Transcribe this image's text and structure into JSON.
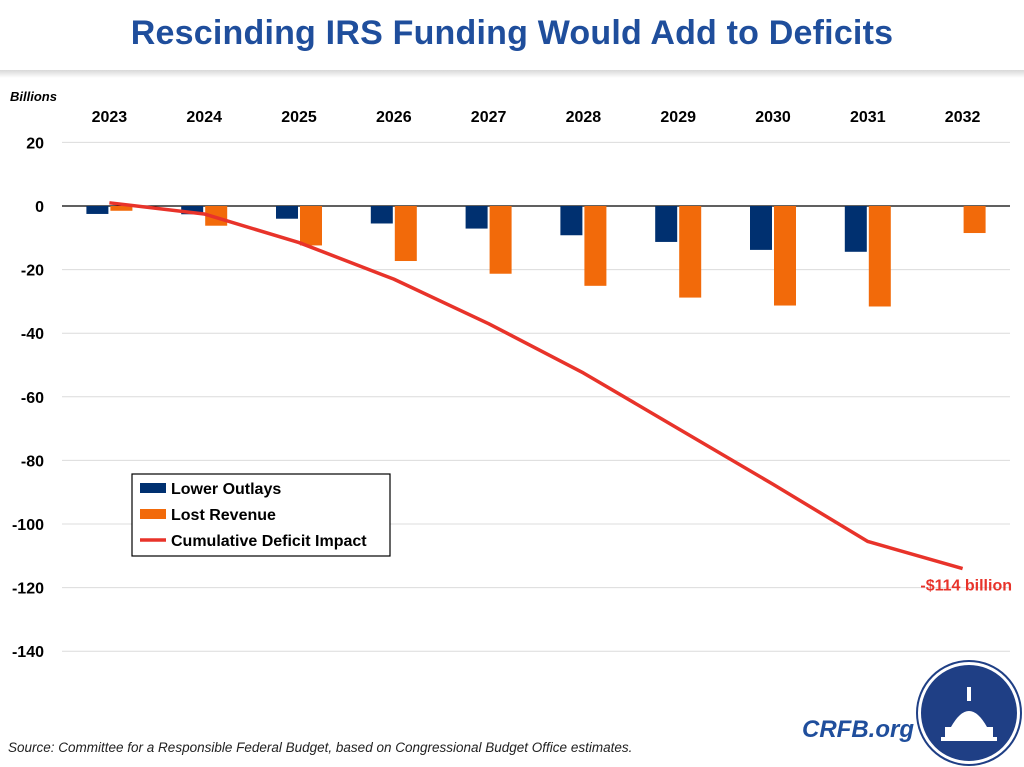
{
  "chart_data": {
    "type": "bar",
    "title": "Rescinding IRS Funding Would Add to Deficits",
    "ylabel": "Billions",
    "categories": [
      "2023",
      "2024",
      "2025",
      "2026",
      "2027",
      "2028",
      "2029",
      "2030",
      "2031",
      "2032"
    ],
    "ylim": [
      -150,
      20
    ],
    "yticks": [
      20,
      0,
      -20,
      -40,
      -60,
      -80,
      -100,
      -120,
      -140
    ],
    "grid": true,
    "legend_position": "bottom-left",
    "series": [
      {
        "name": "Lower Outlays",
        "type": "bar",
        "color": "#003070",
        "values": [
          -2.5,
          -2.6,
          -4.0,
          -5.5,
          -7.1,
          -9.2,
          -11.3,
          -13.8,
          -14.4,
          0
        ]
      },
      {
        "name": "Lost Revenue",
        "type": "bar",
        "color": "#f26a0a",
        "values": [
          -1.5,
          -6.2,
          -12.4,
          -17.3,
          -21.3,
          -25.1,
          -28.8,
          -31.3,
          -31.6,
          -8.5
        ]
      },
      {
        "name": "Cumulative Deficit Impact",
        "type": "line",
        "color": "#e8332a",
        "values": [
          1,
          -2.5,
          -11.5,
          -23,
          -37,
          -52.5,
          -70,
          -87.5,
          -105.5,
          -114
        ]
      }
    ],
    "annotations": [
      {
        "text": "-$114 billion",
        "category": "2032",
        "value": -114
      }
    ]
  },
  "source": "Source: Committee for a Responsible Federal Budget, based on Congressional Budget Office estimates.",
  "brand": "CRFB.org"
}
